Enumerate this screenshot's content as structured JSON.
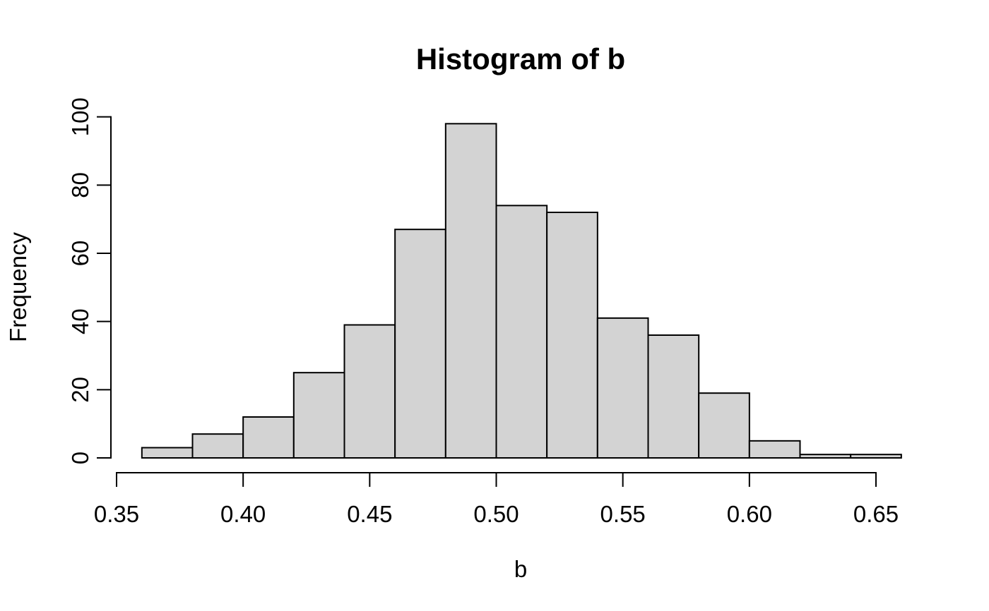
{
  "chart_data": {
    "type": "bar",
    "variant": "histogram",
    "title": "Histogram of b",
    "xlabel": "b",
    "ylabel": "Frequency",
    "bin_edges": [
      0.36,
      0.38,
      0.4,
      0.42,
      0.44,
      0.46,
      0.48,
      0.5,
      0.52,
      0.54,
      0.56,
      0.58,
      0.6,
      0.62,
      0.64,
      0.66
    ],
    "counts": [
      3,
      7,
      12,
      25,
      39,
      67,
      98,
      74,
      72,
      41,
      36,
      19,
      5,
      1,
      1
    ],
    "total_n": 500,
    "x_ticks": [
      {
        "value": 0.35,
        "label": "0.35"
      },
      {
        "value": 0.4,
        "label": "0.40"
      },
      {
        "value": 0.45,
        "label": "0.45"
      },
      {
        "value": 0.5,
        "label": "0.50"
      },
      {
        "value": 0.55,
        "label": "0.55"
      },
      {
        "value": 0.6,
        "label": "0.60"
      },
      {
        "value": 0.65,
        "label": "0.65"
      }
    ],
    "y_ticks": [
      {
        "value": 0,
        "label": "0"
      },
      {
        "value": 20,
        "label": "20"
      },
      {
        "value": 40,
        "label": "40"
      },
      {
        "value": 60,
        "label": "60"
      },
      {
        "value": 80,
        "label": "80"
      },
      {
        "value": 100,
        "label": "100"
      }
    ],
    "xlim": [
      0.35,
      0.66
    ],
    "ylim": [
      0,
      100
    ],
    "grid": false,
    "legend": false,
    "colors": {
      "bar_fill": "#d3d3d3",
      "bar_border": "#000000",
      "axis": "#000000",
      "text": "#000000",
      "background": "#ffffff"
    }
  }
}
